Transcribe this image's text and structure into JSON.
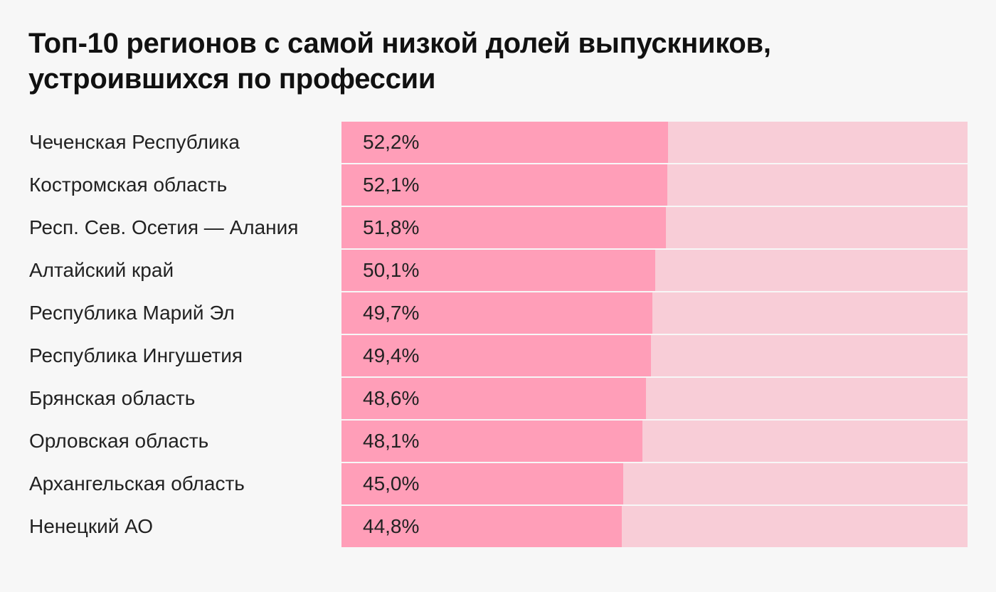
{
  "title": "Топ-10 регионов с самой низкой долей выпускников, устроившихся по профессии",
  "colors": {
    "background": "#f7f7f7",
    "bar": "#ff9eb8",
    "track": "#f8cdd7",
    "text": "#111111"
  },
  "chart_data": {
    "type": "bar",
    "orientation": "horizontal",
    "title": "Топ-10 регионов с самой низкой долей выпускников, устроившихся по профессии",
    "xlim": [
      0,
      100
    ],
    "unit": "%",
    "categories": [
      "Чеченская Республика",
      "Костромская область",
      "Респ. Сев. Осетия — Алания",
      "Алтайский край",
      "Республика Марий Эл",
      "Республика Ингушетия",
      "Брянская область",
      "Орловская область",
      "Архангельская область",
      "Ненецкий АО"
    ],
    "values": [
      52.2,
      52.1,
      51.8,
      50.1,
      49.7,
      49.4,
      48.6,
      48.1,
      45.0,
      44.8
    ],
    "labels": [
      "52,2%",
      "52,1%",
      "51,8%",
      "50,1%",
      "49,7%",
      "49,4%",
      "48,6%",
      "48,1%",
      "45,0%",
      "44,8%"
    ],
    "grid": false,
    "legend": "none"
  }
}
